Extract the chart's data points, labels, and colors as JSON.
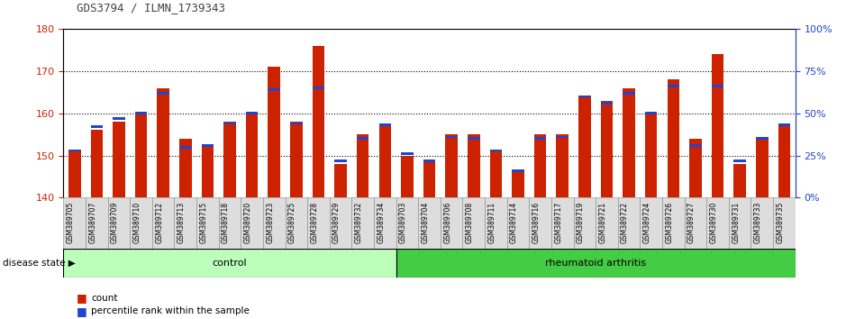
{
  "title": "GDS3794 / ILMN_1739343",
  "samples": [
    "GSM389705",
    "GSM389707",
    "GSM389709",
    "GSM389710",
    "GSM389712",
    "GSM389713",
    "GSM389715",
    "GSM389718",
    "GSM389720",
    "GSM389723",
    "GSM389725",
    "GSM389728",
    "GSM389729",
    "GSM389732",
    "GSM389734",
    "GSM389703",
    "GSM389704",
    "GSM389706",
    "GSM389708",
    "GSM389711",
    "GSM389714",
    "GSM389716",
    "GSM389717",
    "GSM389719",
    "GSM389721",
    "GSM389722",
    "GSM389724",
    "GSM389726",
    "GSM389727",
    "GSM389730",
    "GSM389731",
    "GSM389733",
    "GSM389735"
  ],
  "counts": [
    151,
    156,
    158,
    160,
    166,
    154,
    152,
    158,
    160,
    171,
    158,
    176,
    148,
    155,
    157,
    150,
    149,
    155,
    155,
    151,
    146,
    155,
    155,
    164,
    163,
    166,
    160,
    168,
    154,
    174,
    148,
    154,
    157
  ],
  "percentiles": [
    28,
    42,
    47,
    50,
    62,
    30,
    31,
    44,
    50,
    64,
    44,
    65,
    22,
    35,
    43,
    26,
    22,
    36,
    35,
    28,
    16,
    35,
    36,
    60,
    56,
    62,
    50,
    66,
    31,
    66,
    22,
    35,
    43
  ],
  "n_control": 15,
  "n_ra": 18,
  "control_label": "control",
  "ra_label": "rheumatoid arthritis",
  "disease_state_label": "disease state",
  "count_label": "count",
  "percentile_label": "percentile rank within the sample",
  "ylim_left": [
    140,
    180
  ],
  "ylim_right": [
    0,
    100
  ],
  "yticks_left": [
    140,
    150,
    160,
    170,
    180
  ],
  "yticks_right": [
    0,
    25,
    50,
    75,
    100
  ],
  "bar_color": "#cc2200",
  "percentile_color": "#2244cc",
  "control_bg": "#bbffbb",
  "ra_bg": "#44cc44",
  "tick_bg": "#dddddd",
  "title_color": "#333333",
  "left_axis_color": "#cc2200",
  "right_axis_color": "#2244cc"
}
